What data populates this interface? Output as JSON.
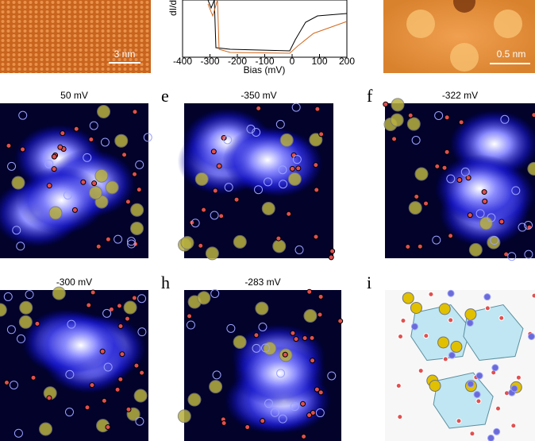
{
  "top": {
    "scale_left": "3 nm",
    "scale_right": "0.5 nm",
    "spectrum": {
      "y_label": "dI/d",
      "x_label": "Bias (mV)",
      "x_ticks": [
        "-400",
        "-300",
        "-200",
        "-100",
        "0",
        "100",
        "200"
      ]
    }
  },
  "panels": [
    {
      "letter": null,
      "title": "50 mV"
    },
    {
      "letter": "e",
      "title": "-350 mV"
    },
    {
      "letter": "f",
      "title": "-322 mV"
    },
    {
      "letter": null,
      "title": "-300 mV"
    },
    {
      "letter": "h",
      "title": "-283 mV"
    },
    {
      "letter": "i",
      "title": null
    }
  ]
}
